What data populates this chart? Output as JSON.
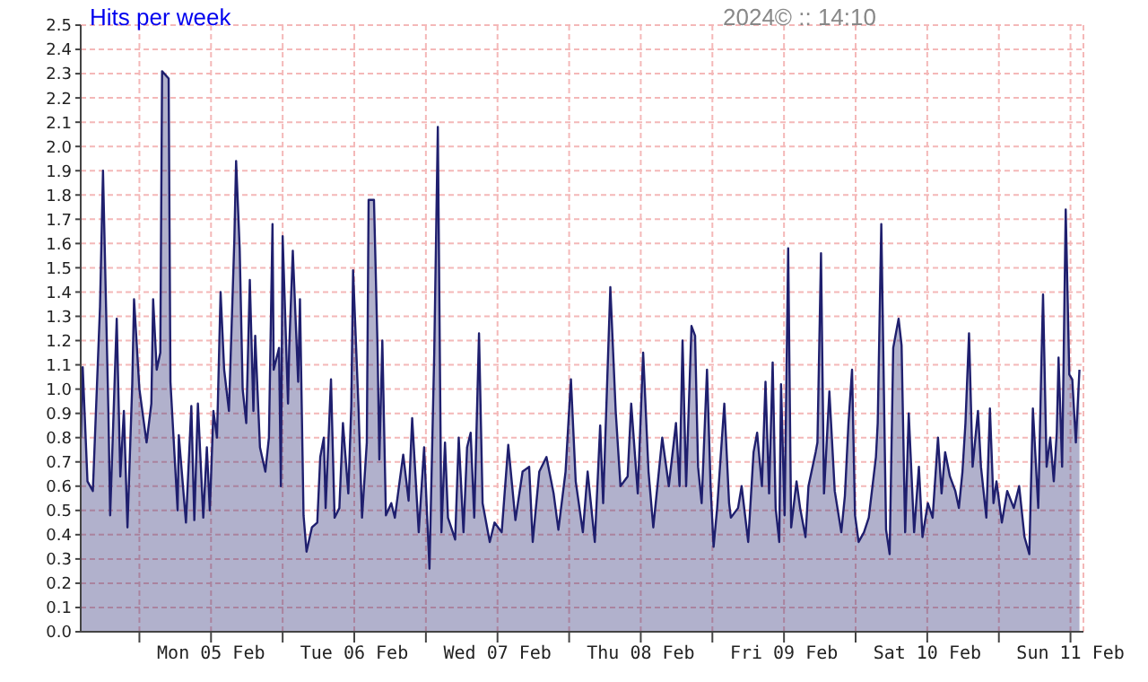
{
  "chart_data": {
    "type": "area",
    "title": "Hits per week",
    "annotations": [
      "2024© :: 14:10"
    ],
    "x": [
      "2024-02-04T14:12",
      "2024-02-04T14:30",
      "2024-02-04T15:18",
      "2024-02-04T16:12",
      "2024-02-04T17:24",
      "2024-02-04T17:54",
      "2024-02-04T18:48",
      "2024-02-04T19:06",
      "2024-02-04T20:12",
      "2024-02-04T20:48",
      "2024-02-04T21:24",
      "2024-02-04T22:00",
      "2024-02-04T22:48",
      "2024-02-04T23:06",
      "2024-02-05T00:00",
      "2024-02-05T01:12",
      "2024-02-05T02:00",
      "2024-02-05T02:18",
      "2024-02-05T02:54",
      "2024-02-05T03:30",
      "2024-02-05T03:48",
      "2024-02-05T04:54",
      "2024-02-05T05:12",
      "2024-02-05T06:24",
      "2024-02-05T06:36",
      "2024-02-05T07:48",
      "2024-02-05T08:42",
      "2024-02-05T09:12",
      "2024-02-05T09:48",
      "2024-02-05T10:42",
      "2024-02-05T11:18",
      "2024-02-05T11:48",
      "2024-02-05T12:24",
      "2024-02-05T13:00",
      "2024-02-05T13:36",
      "2024-02-05T14:12",
      "2024-02-05T15:00",
      "2024-02-05T15:54",
      "2024-02-05T16:12",
      "2024-02-05T16:48",
      "2024-02-05T17:18",
      "2024-02-05T17:54",
      "2024-02-05T18:30",
      "2024-02-05T19:06",
      "2024-02-05T19:24",
      "2024-02-05T20:12",
      "2024-02-05T21:06",
      "2024-02-05T21:42",
      "2024-02-05T22:18",
      "2024-02-05T22:30",
      "2024-02-05T23:24",
      "2024-02-05T23:42",
      "2024-02-06T00:00",
      "2024-02-06T00:54",
      "2024-02-06T01:06",
      "2024-02-06T01:42",
      "2024-02-06T02:36",
      "2024-02-06T02:54",
      "2024-02-06T03:30",
      "2024-02-06T04:00",
      "2024-02-06T04:54",
      "2024-02-06T05:48",
      "2024-02-06T06:18",
      "2024-02-06T06:54",
      "2024-02-06T07:12",
      "2024-02-06T08:06",
      "2024-02-06T08:42",
      "2024-02-06T09:30",
      "2024-02-06T10:06",
      "2024-02-06T11:00",
      "2024-02-06T11:30",
      "2024-02-06T11:48",
      "2024-02-06T12:42",
      "2024-02-06T13:18",
      "2024-02-06T14:06",
      "2024-02-06T14:24",
      "2024-02-06T15:18",
      "2024-02-06T15:54",
      "2024-02-06T16:12",
      "2024-02-06T16:42",
      "2024-02-06T17:18",
      "2024-02-06T18:12",
      "2024-02-06T18:48",
      "2024-02-06T19:36",
      "2024-02-06T20:12",
      "2024-02-06T21:06",
      "2024-02-06T21:42",
      "2024-02-06T22:48",
      "2024-02-06T23:42",
      "2024-02-07T00:36",
      "2024-02-07T01:24",
      "2024-02-07T02:00",
      "2024-02-07T02:36",
      "2024-02-07T03:12",
      "2024-02-07T03:42",
      "2024-02-07T04:54",
      "2024-02-07T05:30",
      "2024-02-07T06:18",
      "2024-02-07T06:54",
      "2024-02-07T07:30",
      "2024-02-07T08:06",
      "2024-02-07T08:54",
      "2024-02-07T09:30",
      "2024-02-07T10:42",
      "2024-02-07T11:30",
      "2024-02-07T12:42",
      "2024-02-07T13:48",
      "2024-02-07T15:00",
      "2024-02-07T16:12",
      "2024-02-07T17:18",
      "2024-02-07T17:54",
      "2024-02-07T19:00",
      "2024-02-07T20:12",
      "2024-02-07T21:24",
      "2024-02-07T22:12",
      "2024-02-07T23:24",
      "2024-02-08T00:18",
      "2024-02-08T01:06",
      "2024-02-08T02:18",
      "2024-02-08T03:06",
      "2024-02-08T04:18",
      "2024-02-08T05:12",
      "2024-02-08T05:42",
      "2024-02-08T06:54",
      "2024-02-08T07:48",
      "2024-02-08T08:36",
      "2024-02-08T09:48",
      "2024-02-08T10:24",
      "2024-02-08T11:30",
      "2024-02-08T12:24",
      "2024-02-08T13:18",
      "2024-02-08T14:06",
      "2024-02-08T15:36",
      "2024-02-08T16:42",
      "2024-02-08T17:54",
      "2024-02-08T18:30",
      "2024-02-08T19:00",
      "2024-02-08T19:36",
      "2024-02-08T20:30",
      "2024-02-08T21:06",
      "2024-02-08T21:36",
      "2024-02-08T22:12",
      "2024-02-08T23:06",
      "2024-02-08T23:42",
      "2024-02-09T00:12",
      "2024-02-09T00:48",
      "2024-02-09T02:00",
      "2024-02-09T02:48",
      "2024-02-09T03:06",
      "2024-02-09T04:18",
      "2024-02-09T04:54",
      "2024-02-09T06:00",
      "2024-02-09T06:54",
      "2024-02-09T07:30",
      "2024-02-09T08:18",
      "2024-02-09T08:54",
      "2024-02-09T09:30",
      "2024-02-09T10:06",
      "2024-02-09T10:36",
      "2024-02-09T11:12",
      "2024-02-09T11:30",
      "2024-02-09T12:06",
      "2024-02-09T12:42",
      "2024-02-09T13:12",
      "2024-02-09T14:06",
      "2024-02-09T14:42",
      "2024-02-09T15:36",
      "2024-02-09T16:06",
      "2024-02-09T17:18",
      "2024-02-09T17:36",
      "2024-02-09T18:12",
      "2024-02-09T18:42",
      "2024-02-09T19:36",
      "2024-02-09T20:30",
      "2024-02-09T21:36",
      "2024-02-09T22:12",
      "2024-02-09T22:48",
      "2024-02-09T23:24",
      "2024-02-09T23:54",
      "2024-02-10T00:30",
      "2024-02-10T01:24",
      "2024-02-10T02:12",
      "2024-02-10T03:24",
      "2024-02-10T03:42",
      "2024-02-10T04:18",
      "2024-02-10T05:06",
      "2024-02-10T05:42",
      "2024-02-10T06:18",
      "2024-02-10T07:12",
      "2024-02-10T07:42",
      "2024-02-10T08:18",
      "2024-02-10T08:54",
      "2024-02-10T09:48",
      "2024-02-10T10:36",
      "2024-02-10T11:12",
      "2024-02-10T12:06",
      "2024-02-10T12:54",
      "2024-02-10T13:48",
      "2024-02-10T14:24",
      "2024-02-10T15:00",
      "2024-02-10T15:48",
      "2024-02-10T16:42",
      "2024-02-10T17:18",
      "2024-02-10T17:54",
      "2024-02-10T18:24",
      "2024-02-10T19:00",
      "2024-02-10T19:36",
      "2024-02-10T20:30",
      "2024-02-10T21:00",
      "2024-02-10T21:54",
      "2024-02-10T22:30",
      "2024-02-10T23:06",
      "2024-02-10T23:36",
      "2024-02-11T00:30",
      "2024-02-11T01:24",
      "2024-02-11T02:30",
      "2024-02-11T03:24",
      "2024-02-11T04:18",
      "2024-02-11T05:06",
      "2024-02-11T05:42",
      "2024-02-11T06:36",
      "2024-02-11T07:06",
      "2024-02-11T07:24",
      "2024-02-11T08:00",
      "2024-02-11T08:36",
      "2024-02-11T09:12",
      "2024-02-11T09:42",
      "2024-02-11T10:00",
      "2024-02-11T10:36",
      "2024-02-11T11:12",
      "2024-02-11T11:48",
      "2024-02-11T12:18",
      "2024-02-11T12:54",
      "2024-02-11T13:30"
    ],
    "series": [
      {
        "color": "#1f1f6e",
        "values": [
          0.8,
          1.09,
          0.62,
          0.58,
          1.34,
          1.9,
          0.91,
          0.48,
          1.29,
          0.64,
          0.91,
          0.43,
          1.02,
          1.37,
          1.0,
          0.78,
          0.94,
          1.37,
          1.08,
          1.15,
          2.31,
          2.28,
          1.03,
          0.5,
          0.81,
          0.45,
          0.93,
          0.46,
          0.94,
          0.47,
          0.76,
          0.5,
          0.91,
          0.8,
          1.4,
          1.08,
          0.91,
          1.61,
          1.94,
          1.58,
          1.0,
          0.86,
          1.45,
          0.91,
          1.22,
          0.76,
          0.66,
          0.8,
          1.68,
          1.08,
          1.17,
          0.6,
          1.63,
          0.94,
          1.17,
          1.57,
          1.03,
          1.37,
          0.48,
          0.33,
          0.43,
          0.45,
          0.72,
          0.8,
          0.51,
          1.04,
          0.47,
          0.51,
          0.86,
          0.57,
          0.93,
          1.49,
          0.93,
          0.47,
          0.78,
          1.78,
          1.78,
          1.17,
          0.71,
          1.2,
          0.48,
          0.53,
          0.47,
          0.62,
          0.73,
          0.54,
          0.88,
          0.41,
          0.76,
          0.26,
          1.15,
          2.08,
          0.41,
          0.78,
          0.47,
          0.38,
          0.8,
          0.41,
          0.76,
          0.82,
          0.47,
          1.23,
          0.53,
          0.37,
          0.45,
          0.41,
          0.77,
          0.46,
          0.66,
          0.68,
          0.37,
          0.66,
          0.72,
          0.57,
          0.42,
          0.66,
          1.04,
          0.62,
          0.41,
          0.66,
          0.37,
          0.85,
          0.53,
          1.42,
          0.91,
          0.6,
          0.64,
          0.94,
          0.57,
          1.15,
          0.66,
          0.43,
          0.8,
          0.6,
          0.86,
          0.6,
          1.2,
          0.6,
          1.26,
          1.22,
          0.68,
          0.53,
          1.08,
          0.6,
          0.35,
          0.51,
          0.94,
          0.53,
          0.47,
          0.51,
          0.6,
          0.37,
          0.74,
          0.82,
          0.6,
          1.03,
          0.57,
          1.11,
          0.51,
          0.37,
          1.02,
          0.48,
          1.58,
          0.43,
          0.62,
          0.51,
          0.39,
          0.6,
          0.74,
          0.78,
          1.56,
          0.57,
          0.99,
          0.58,
          0.41,
          0.56,
          0.86,
          1.08,
          0.48,
          0.37,
          0.41,
          0.47,
          0.72,
          0.86,
          1.68,
          0.42,
          0.32,
          1.17,
          1.29,
          1.18,
          0.41,
          0.9,
          0.41,
          0.68,
          0.39,
          0.53,
          0.47,
          0.8,
          0.57,
          0.74,
          0.64,
          0.58,
          0.51,
          0.66,
          0.86,
          1.23,
          0.68,
          0.91,
          0.68,
          0.47,
          0.92,
          0.53,
          0.62,
          0.45,
          0.58,
          0.51,
          0.6,
          0.39,
          0.32,
          0.92,
          0.51,
          1.08,
          1.39,
          0.68,
          0.8,
          0.62,
          0.82,
          1.13,
          0.68,
          1.74,
          1.06,
          1.04,
          0.78,
          1.08
        ]
      }
    ],
    "xlim": [
      "2024-02-04T14:10",
      "2024-02-11T14:10"
    ],
    "xticks": [
      {
        "value": "2024-02-05T00:00",
        "label": null
      },
      {
        "value": "2024-02-05T12:00",
        "label": "Mon 05 Feb"
      },
      {
        "value": "2024-02-06T00:00",
        "label": null
      },
      {
        "value": "2024-02-06T12:00",
        "label": "Tue 06 Feb"
      },
      {
        "value": "2024-02-07T00:00",
        "label": null
      },
      {
        "value": "2024-02-07T12:00",
        "label": "Wed 07 Feb"
      },
      {
        "value": "2024-02-08T00:00",
        "label": null
      },
      {
        "value": "2024-02-08T12:00",
        "label": "Thu 08 Feb"
      },
      {
        "value": "2024-02-09T00:00",
        "label": null
      },
      {
        "value": "2024-02-09T12:00",
        "label": "Fri 09 Feb"
      },
      {
        "value": "2024-02-10T00:00",
        "label": null
      },
      {
        "value": "2024-02-10T12:00",
        "label": "Sat 10 Feb"
      },
      {
        "value": "2024-02-11T00:00",
        "label": null
      },
      {
        "value": "2024-02-11T12:00",
        "label": "Sun 11 Feb"
      }
    ],
    "ylim": [
      0,
      2.5
    ],
    "yticks": [
      {
        "value": 0,
        "label": "0.0"
      },
      0.1,
      0.2,
      0.3,
      0.4,
      0.5,
      0.6,
      0.7,
      0.8,
      0.9,
      {
        "value": 1,
        "label": "1.0"
      },
      1.1,
      1.2,
      1.3,
      1.4,
      1.5,
      1.6,
      1.7,
      1.8,
      1.9,
      {
        "value": 2,
        "label": "2.0"
      },
      2.1,
      2.2,
      2.3,
      2.4,
      2.5
    ],
    "grid": true,
    "legend": false,
    "marker": "none",
    "line_style": "solid"
  }
}
